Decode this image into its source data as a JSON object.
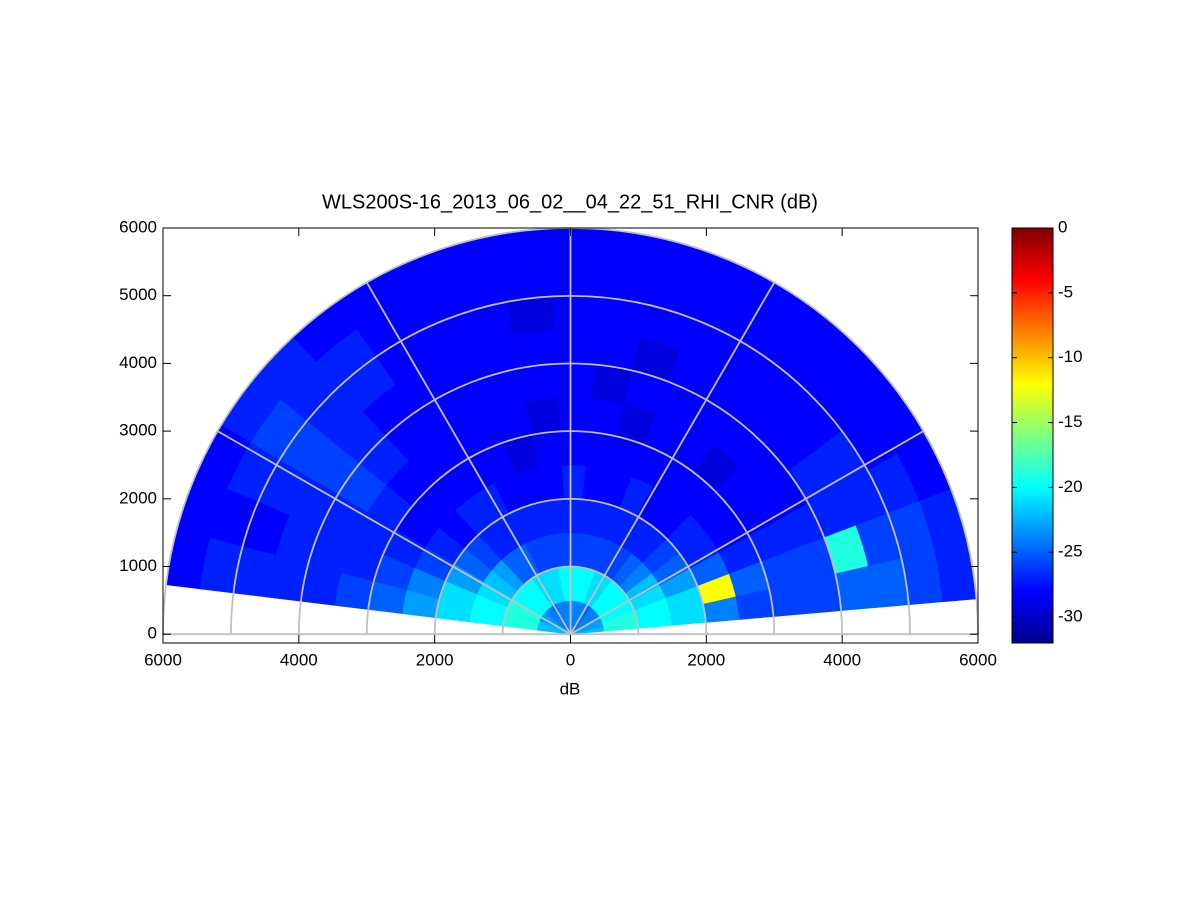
{
  "chart_data": {
    "type": "polar_rhi",
    "title": "WLS200S-16_2013_06_02__04_22_51_RHI_CNR (dB)",
    "xlabel": "dB",
    "xlim": [
      -6000,
      6000
    ],
    "ylim": [
      -130,
      6000
    ],
    "xticks": [
      {
        "value": -6000,
        "label": "6000"
      },
      {
        "value": -4000,
        "label": "4000"
      },
      {
        "value": -2000,
        "label": "2000"
      },
      0,
      2000,
      4000,
      6000
    ],
    "yticks": [
      0,
      1000,
      2000,
      3000,
      4000,
      5000,
      6000
    ],
    "polar_grid": {
      "rings": [
        1000,
        2000,
        3000,
        4000,
        5000,
        6000
      ],
      "spokes": [
        0,
        30,
        60,
        90,
        120,
        150,
        180
      ],
      "color": "#c0c0c0"
    },
    "colormap": "jet",
    "clim": [
      -32,
      0
    ],
    "colorbar": {
      "ticks": [
        0,
        -5,
        -10,
        -15,
        -20,
        -25,
        -30
      ]
    },
    "range_edges": [
      0,
      500,
      1000,
      1500,
      2000,
      2500,
      3000,
      3500,
      4000,
      4500,
      5000,
      5500,
      6000
    ],
    "elevation_edges": [
      5,
      13,
      21,
      29,
      37,
      45,
      53,
      61,
      69,
      77,
      85,
      93,
      101,
      109,
      117,
      125,
      133,
      141,
      149,
      157,
      165,
      173
    ],
    "values": [
      [
        -22,
        -23,
        -23,
        -24,
        -24,
        -24,
        -25,
        -24,
        -24,
        -24,
        -23,
        -24,
        -24,
        -24,
        -25,
        -24,
        -24,
        -23,
        -23,
        -22,
        -22
      ],
      [
        -19,
        -19,
        -20,
        -20,
        -20,
        -20,
        -21,
        -21,
        -20,
        -20,
        -20,
        -20,
        -21,
        -21,
        -21,
        -20,
        -20,
        -20,
        -19,
        -19,
        -19
      ],
      [
        -20,
        -20,
        -21,
        -22,
        -24,
        -25,
        -26,
        -26,
        -26,
        -26,
        -26,
        -26,
        -26,
        -26,
        -25,
        -25,
        -23,
        -22,
        -21,
        -20,
        -20
      ],
      [
        -21,
        -21,
        -23,
        -25,
        -26,
        -27,
        -27,
        -27,
        -27,
        -27,
        -27,
        -27,
        -27,
        -27,
        -27,
        -27,
        -26,
        -25,
        -23,
        -21,
        -21
      ],
      [
        -24,
        -12,
        -25,
        -27,
        -27,
        -28,
        -28,
        -27,
        -28,
        -28,
        -27,
        -28,
        -28,
        -28,
        -27,
        -27,
        -28,
        -27,
        -26,
        -24,
        -23
      ],
      [
        -26,
        -25,
        -27,
        -28,
        -28,
        -28,
        -28,
        -28,
        -28,
        -28,
        -28,
        -28,
        -29,
        -28,
        -28,
        -28,
        -28,
        -28,
        -27,
        -26,
        -25
      ],
      [
        -26,
        -26,
        -27,
        -28,
        -28,
        -29,
        -28,
        -28,
        -29,
        -28,
        -28,
        -29,
        -28,
        -28,
        -28,
        -28,
        -28,
        -27,
        -27,
        -27,
        -26
      ],
      [
        -26,
        -26,
        -27,
        -28,
        -28,
        -28,
        -28,
        -28,
        -28,
        -29,
        -28,
        -28,
        -28,
        -28,
        -28,
        -28,
        -27,
        -26,
        -27,
        -27,
        -27
      ],
      [
        -25,
        -19,
        -27,
        -27,
        -28,
        -28,
        -28,
        -28,
        -29,
        -28,
        -28,
        -28,
        -28,
        -28,
        -28,
        -28,
        -27,
        -26,
        -27,
        -27,
        -27
      ],
      [
        -25,
        -26,
        -27,
        -27,
        -28,
        -28,
        -28,
        -28,
        -28,
        -28,
        -28,
        -29,
        -28,
        -28,
        -28,
        -27,
        -27,
        -26,
        -27,
        -28,
        -27
      ],
      [
        -26,
        -26,
        -27,
        -28,
        -28,
        -28,
        -28,
        -28,
        -28,
        -28,
        -28,
        -28,
        -28,
        -28,
        -28,
        -27,
        -27,
        -26,
        -27,
        -28,
        -27
      ],
      [
        -27,
        -27,
        -28,
        -28,
        -28,
        -28,
        -28,
        -28,
        -28,
        -28,
        -28,
        -28,
        -28,
        -28,
        -28,
        -28,
        -27,
        -27,
        -28,
        -28,
        -28
      ]
    ]
  }
}
